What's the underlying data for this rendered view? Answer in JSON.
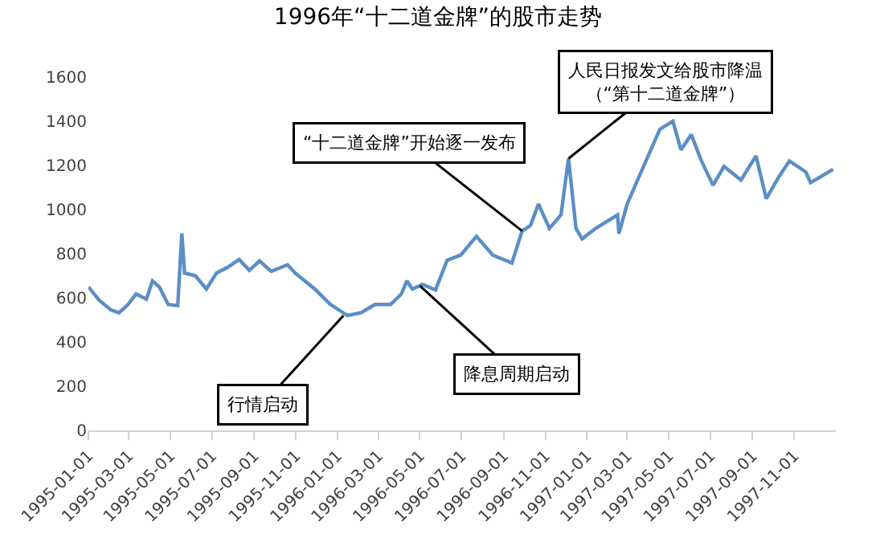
{
  "chart_data": {
    "type": "line",
    "title": "1996年“十二道金牌”的股市走势",
    "x": [
      "1995-01-01",
      "1995-01-17",
      "1995-02-03",
      "1995-02-15",
      "1995-02-28",
      "1995-03-12",
      "1995-03-27",
      "1995-04-05",
      "1995-04-15",
      "1995-04-28",
      "1995-05-12",
      "1995-05-18",
      "1995-05-22",
      "1995-06-07",
      "1995-06-23",
      "1995-07-08",
      "1995-07-24",
      "1995-08-10",
      "1995-08-25",
      "1995-09-09",
      "1995-09-26",
      "1995-10-20",
      "1995-11-01",
      "1995-11-29",
      "1995-12-22",
      "1996-01-16",
      "1996-02-05",
      "1996-02-25",
      "1996-03-19",
      "1996-04-04",
      "1996-04-12",
      "1996-04-20",
      "1996-05-05",
      "1996-05-24",
      "1996-06-10",
      "1996-06-30",
      "1996-07-23",
      "1996-08-16",
      "1996-09-13",
      "1996-09-28",
      "1996-10-10",
      "1996-10-22",
      "1996-11-07",
      "1996-11-24",
      "1996-12-05",
      "1996-12-16",
      "1996-12-25",
      "1997-01-14",
      "1997-02-15",
      "1997-02-17",
      "1997-03-01",
      "1997-03-25",
      "1997-04-18",
      "1997-05-07",
      "1997-05-19",
      "1997-06-03",
      "1997-06-18",
      "1997-07-05",
      "1997-07-21",
      "1997-08-15",
      "1997-09-06",
      "1997-09-21",
      "1997-10-09",
      "1997-10-25",
      "1997-11-18",
      "1997-11-25",
      "1997-12-28"
    ],
    "series": [
      {
        "color": "#5b8ec6",
        "values": [
          650,
          589,
          545,
          533,
          570,
          618,
          594,
          677,
          650,
          570,
          565,
          892,
          713,
          700,
          640,
          713,
          738,
          774,
          725,
          767,
          720,
          750,
          710,
          640,
          570,
          520,
          533,
          570,
          570,
          618,
          677,
          640,
          661,
          636,
          770,
          794,
          879,
          794,
          758,
          903,
          927,
          1025,
          915,
          976,
          1231,
          915,
          867,
          915,
          976,
          891,
          1025,
          1195,
          1364,
          1400,
          1270,
          1340,
          1220,
          1110,
          1195,
          1134,
          1243,
          1049,
          1146,
          1220,
          1170,
          1122,
          1182
        ]
      }
    ],
    "xlim": [
      "1995-01-01",
      "1998-01-01"
    ],
    "xticks": [
      "1995-01-01",
      "1995-03-01",
      "1995-05-01",
      "1995-07-01",
      "1995-09-01",
      "1995-11-01",
      "1996-01-01",
      "1996-03-01",
      "1996-05-01",
      "1996-07-01",
      "1996-09-01",
      "1996-11-01",
      "1997-01-01",
      "1997-03-01",
      "1997-05-01",
      "1997-07-01",
      "1997-09-01",
      "1997-11-01"
    ],
    "ylim": [
      0,
      1600
    ],
    "yticks": [
      0,
      200,
      400,
      600,
      800,
      1000,
      1200,
      1400,
      1600
    ],
    "grid": false,
    "marker": "none",
    "line_style": "solid",
    "annotations": [
      {
        "text": "行情启动",
        "x": "1996-01-10",
        "y": 520
      },
      {
        "text": "降息周期启动",
        "x": "1996-05-01",
        "y": 655
      },
      {
        "text": "“十二道金牌”开始逐一发布",
        "x": "1996-09-28",
        "y": 903
      },
      {
        "text": "人民日报发文给股市降温（“第十二道金牌”）",
        "x": "1996-12-05",
        "y": 1231
      }
    ]
  }
}
